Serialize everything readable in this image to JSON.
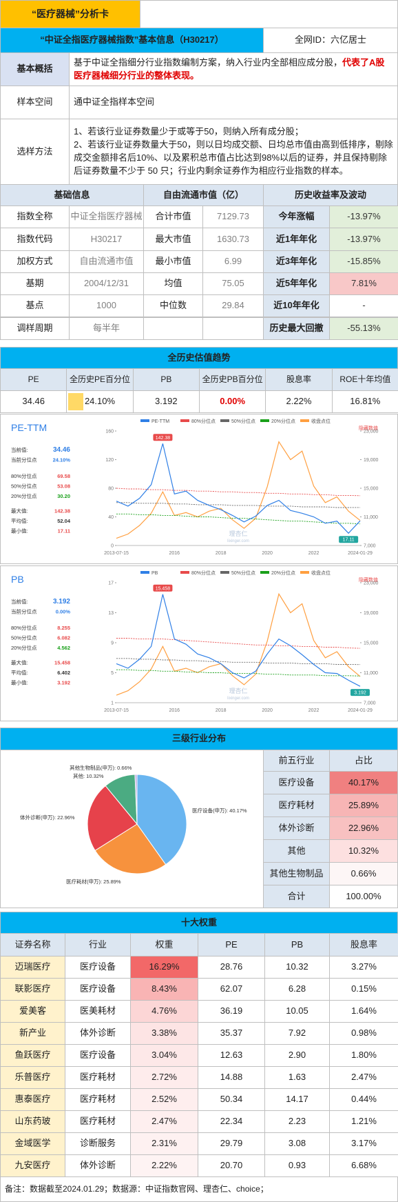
{
  "header": {
    "title": "“医疗器械”分析卡",
    "subtitle": "“中证全指医疗器械指数”基本信息（H30217）",
    "author": "全网ID：六亿居士"
  },
  "overview": {
    "label": "基本概括",
    "text": "基于中证全指细分行业指数编制方案，纳入行业内全部相应成分股，",
    "highlight": "代表了A股医疗器械细分行业的整体表现。"
  },
  "sample_space": {
    "label": "样本空间",
    "text": "通中证全指样本空间"
  },
  "selection": {
    "label": "选样方法",
    "items": [
      "1、若该行业证券数量少于或等于50，则纳入所有成分股；",
      "2、若该行业证券数量大于50，则以日均成交额、日均总市值由高到低排序，剔除成交金额排名后10%、以及累积总市值占比达到98%以后的证券，并且保持剔除后证券数量不少于 50 只；行业内剩余证券作为相应行业指数的样本。"
    ]
  },
  "basic": {
    "headers": [
      "基础信息",
      "自由流通市值（亿）",
      "历史收益率及波动"
    ],
    "rows": [
      [
        "指数全称",
        "中证全指医疗器械",
        "合计市值",
        "7129.73",
        "今年涨幅",
        "-13.97%"
      ],
      [
        "指数代码",
        "H30217",
        "最大市值",
        "1630.73",
        "近1年年化",
        "-13.97%"
      ],
      [
        "加权方式",
        "自由流通市值",
        "最小市值",
        "6.99",
        "近3年年化",
        "-15.85%"
      ],
      [
        "基期",
        "2004/12/31",
        "均值",
        "75.05",
        "近5年年化",
        "7.81%"
      ],
      [
        "基点",
        "1000",
        "中位数",
        "29.84",
        "近10年年化",
        "-"
      ],
      [
        "调样周期",
        "每半年",
        null,
        null,
        "历史最大回撤",
        "-55.13%"
      ]
    ],
    "return_colors": [
      "#e2efda",
      "#e2efda",
      "#e2efda",
      "#f8c8c8",
      null,
      "#e2efda"
    ]
  },
  "valuation": {
    "title": "全历史估值趋势",
    "headers": [
      "PE",
      "全历史PE百分位",
      "PB",
      "全历史PB百分位",
      "股息率",
      "ROE十年均值"
    ],
    "values": [
      "34.46",
      "24.10%",
      "3.192",
      "0.00%",
      "2.22%",
      "16.81%"
    ],
    "pe_percentile_bar": 24.1
  },
  "chart_data": [
    {
      "type": "line",
      "title": "PE-TTM",
      "categories": [
        "2013-07-15",
        null,
        null,
        null,
        null,
        "2016",
        null,
        null,
        null,
        "2018",
        null,
        null,
        null,
        "2020",
        null,
        null,
        null,
        "2022",
        null,
        null,
        null,
        "2024-01-29"
      ],
      "series": [
        {
          "name": "PE-TTM",
          "color": "#2f7fe6",
          "values": [
            62,
            55,
            66,
            85,
            142.38,
            72,
            76,
            63,
            56,
            50,
            42,
            33,
            41,
            56,
            63,
            49,
            45,
            40,
            31,
            34,
            17.11,
            34.46
          ]
        },
        {
          "name": "80%分位点",
          "color": "#e84a4a",
          "values": [
            80,
            79,
            79,
            78,
            78,
            77,
            77,
            76,
            76,
            75,
            75,
            74,
            74,
            73,
            73,
            72,
            72,
            71,
            71,
            70,
            70,
            69.58
          ]
        },
        {
          "name": "50%分位点",
          "color": "#666666",
          "values": [
            60,
            60,
            59,
            59,
            59,
            58,
            58,
            57,
            57,
            57,
            56,
            56,
            56,
            55,
            55,
            55,
            54,
            54,
            54,
            53,
            53,
            53.08
          ]
        },
        {
          "name": "20%分位点",
          "color": "#1aa01a",
          "values": [
            44,
            44,
            43,
            43,
            42,
            42,
            41,
            40,
            40,
            39,
            38,
            38,
            37,
            36,
            35,
            34,
            34,
            33,
            32,
            31,
            31,
            30.2
          ]
        },
        {
          "name": "收盘点位",
          "color": "#ff9f40",
          "axis": "y2",
          "values": [
            8000,
            8600,
            9800,
            11500,
            14500,
            11200,
            11600,
            11000,
            11800,
            12200,
            10600,
            9400,
            10800,
            15200,
            21500,
            19000,
            20200,
            15300,
            13000,
            13800,
            11800,
            10500
          ]
        }
      ],
      "ylim": [
        0,
        160
      ],
      "yticks": [
        0,
        40,
        80,
        120,
        160
      ],
      "y2lim": [
        7000,
        23000
      ],
      "y2ticks": [
        {
          "value": 7000,
          "label": "7,000"
        },
        {
          "value": 11000,
          "label": "11,000"
        },
        {
          "value": 15000,
          "label": "15,000"
        },
        {
          "value": 19000,
          "label": "19,000"
        },
        {
          "value": 23000,
          "label": "23,000"
        }
      ],
      "max_label": "142.38",
      "min_label": "17.11",
      "hide_label": "隐藏数值",
      "watermark": [
        "理杏仁",
        "lixinger.com"
      ],
      "stats": [
        {
          "label": "当前值:",
          "value": "34.46",
          "color": "#2f7fe6"
        },
        {
          "label": "当前分位点",
          "value": "24.10%",
          "color": "#2f7fe6"
        },
        {
          "label": "80%分位点",
          "value": "69.58",
          "color": "#e84a4a"
        },
        {
          "label": "50%分位点",
          "value": "53.08",
          "color": "#e84a4a"
        },
        {
          "label": "20%分位点",
          "value": "30.20",
          "color": "#1aa01a"
        },
        {
          "label": "最大值:",
          "value": "142.38",
          "color": "#e84a4a"
        },
        {
          "label": "平均值:",
          "value": "52.04",
          "color": "#333333"
        },
        {
          "label": "最小值:",
          "value": "17.11",
          "color": "#e84a4a"
        }
      ]
    },
    {
      "type": "line",
      "title": "PB",
      "categories": [
        "2013-07-15",
        null,
        null,
        null,
        null,
        "2016",
        null,
        null,
        null,
        "2018",
        null,
        null,
        null,
        "2020",
        null,
        null,
        null,
        "2022",
        null,
        null,
        null,
        "2024-01-29"
      ],
      "series": [
        {
          "name": "PB",
          "color": "#2f7fe6",
          "values": [
            6.2,
            5.6,
            6.8,
            8.5,
            15.458,
            9.5,
            8.8,
            7.5,
            7.0,
            6.2,
            5.0,
            4.3,
            5.2,
            7.5,
            9.5,
            8.6,
            7.4,
            6.1,
            5.0,
            4.9,
            4.0,
            3.192
          ]
        },
        {
          "name": "80%分位点",
          "color": "#e84a4a",
          "values": [
            9.6,
            9.6,
            9.5,
            9.5,
            9.5,
            9.4,
            9.3,
            9.2,
            9.1,
            9.0,
            8.9,
            8.8,
            8.7,
            8.7,
            8.6,
            8.6,
            8.5,
            8.5,
            8.4,
            8.4,
            8.3,
            8.255
          ]
        },
        {
          "name": "50%分位点",
          "color": "#666666",
          "values": [
            6.9,
            6.9,
            6.8,
            6.8,
            6.7,
            6.7,
            6.6,
            6.6,
            6.5,
            6.5,
            6.4,
            6.4,
            6.4,
            6.3,
            6.3,
            6.3,
            6.2,
            6.2,
            6.2,
            6.1,
            6.1,
            6.082
          ]
        },
        {
          "name": "20%分位点",
          "color": "#1aa01a",
          "values": [
            5.4,
            5.4,
            5.3,
            5.3,
            5.2,
            5.2,
            5.1,
            5.1,
            5.0,
            5.0,
            4.9,
            4.9,
            4.9,
            4.8,
            4.8,
            4.7,
            4.7,
            4.7,
            4.6,
            4.6,
            4.6,
            4.562
          ]
        },
        {
          "name": "收盘点位",
          "color": "#ff9f40",
          "axis": "y2",
          "values": [
            8000,
            8600,
            9800,
            11500,
            14500,
            11200,
            11600,
            11000,
            11800,
            12200,
            10600,
            9400,
            10800,
            15200,
            21500,
            19000,
            20200,
            15300,
            13000,
            13800,
            11800,
            10500
          ]
        }
      ],
      "ylim": [
        1,
        17
      ],
      "yticks": [
        1,
        5,
        9,
        13,
        17
      ],
      "y2lim": [
        7000,
        23000
      ],
      "y2ticks": [
        {
          "value": 7000,
          "label": "7,000"
        },
        {
          "value": 11000,
          "label": "11,000"
        },
        {
          "value": 15000,
          "label": "15,000"
        },
        {
          "value": 19000,
          "label": "19,000"
        },
        {
          "value": 23000,
          "label": "23,000"
        }
      ],
      "max_label": "15.458",
      "min_label": "3.192",
      "hide_label": "隐藏数值",
      "watermark": [
        "理杏仁",
        "lixinger.com"
      ],
      "stats": [
        {
          "label": "当前值:",
          "value": "3.192",
          "color": "#2f7fe6"
        },
        {
          "label": "当前分位点",
          "value": "0.00%",
          "color": "#2f7fe6"
        },
        {
          "label": "80%分位点",
          "value": "8.255",
          "color": "#e84a4a"
        },
        {
          "label": "50%分位点",
          "value": "6.082",
          "color": "#e84a4a"
        },
        {
          "label": "20%分位点",
          "value": "4.562",
          "color": "#1aa01a"
        },
        {
          "label": "最大值:",
          "value": "15.458",
          "color": "#e84a4a"
        },
        {
          "label": "平均值:",
          "value": "6.402",
          "color": "#333333"
        },
        {
          "label": "最小值:",
          "value": "3.192",
          "color": "#e84a4a"
        }
      ]
    },
    {
      "type": "pie",
      "categories": [
        "医疗设备(申万): 40.17%",
        "医疗耗材(申万): 25.89%",
        "体外诊断(申万): 22.96%",
        "其他: 10.32%",
        "其他生物制品(申万): 0.66%"
      ],
      "values": [
        40.17,
        25.89,
        22.96,
        10.32,
        0.66
      ],
      "colors": [
        "#69b5f0",
        "#f7923d",
        "#e6424b",
        "#4bab82",
        "#b9a7e2"
      ]
    }
  ],
  "industry": {
    "title": "三级行业分布",
    "headers": [
      "前五行业",
      "占比"
    ],
    "rows": [
      [
        "医疗设备",
        "40.17%"
      ],
      [
        "医疗耗材",
        "25.89%"
      ],
      [
        "体外诊断",
        "22.96%"
      ],
      [
        "其他",
        "10.32%"
      ],
      [
        "其他生物制品",
        "0.66%"
      ],
      [
        "合计",
        "100.00%"
      ]
    ],
    "colors": [
      "#f08080",
      "#f7b5b5",
      "#f8c1c1",
      "#fde0e0",
      "#fdf6f6",
      null
    ]
  },
  "top_ten": {
    "title": "十大权重",
    "headers": [
      "证券名称",
      "行业",
      "权重",
      "PE",
      "PB",
      "股息率"
    ],
    "rows": [
      [
        "迈瑞医疗",
        "医疗设备",
        "16.29%",
        "28.76",
        "10.32",
        "3.27%"
      ],
      [
        "联影医疗",
        "医疗设备",
        "8.43%",
        "62.07",
        "6.28",
        "0.15%"
      ],
      [
        "爱美客",
        "医美耗材",
        "4.76%",
        "36.19",
        "10.05",
        "1.64%"
      ],
      [
        "新产业",
        "体外诊断",
        "3.38%",
        "35.37",
        "7.92",
        "0.98%"
      ],
      [
        "鱼跃医疗",
        "医疗设备",
        "3.04%",
        "12.63",
        "2.90",
        "1.80%"
      ],
      [
        "乐普医疗",
        "医疗耗材",
        "2.72%",
        "14.88",
        "1.63",
        "2.47%"
      ],
      [
        "惠泰医疗",
        "医疗耗材",
        "2.52%",
        "50.34",
        "14.17",
        "0.44%"
      ],
      [
        "山东药玻",
        "医疗耗材",
        "2.47%",
        "22.34",
        "2.23",
        "1.21%"
      ],
      [
        "金域医学",
        "诊断服务",
        "2.31%",
        "29.79",
        "3.08",
        "3.17%"
      ],
      [
        "九安医疗",
        "体外诊断",
        "2.22%",
        "20.70",
        "0.93",
        "6.68%"
      ]
    ],
    "weight_colors": [
      "#f26868",
      "#f9b4b4",
      "#fcd6d6",
      "#fde4e4",
      "#fde8e8",
      "#feecec",
      "#feeeee",
      "#feefef",
      "#fef1f1",
      "#fef3f3"
    ]
  },
  "footnote": "备注：数据截至2024.01.29；数据源：中证指数官网、理杏仁、choice；"
}
